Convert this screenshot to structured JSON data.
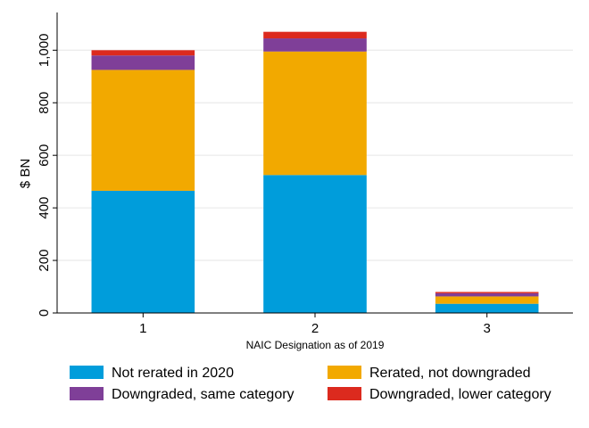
{
  "chart_data": {
    "type": "bar",
    "stacked": true,
    "categories": [
      "1",
      "2",
      "3"
    ],
    "series": [
      {
        "name": "Not rerated in 2020",
        "color": "#009ddb",
        "values": [
          465,
          525,
          35
        ]
      },
      {
        "name": "Rerated, not downgraded",
        "color": "#f2a900",
        "values": [
          460,
          470,
          28
        ]
      },
      {
        "name": "Downgraded, same category",
        "color": "#7f3f98",
        "values": [
          55,
          50,
          12
        ]
      },
      {
        "name": "Downgraded, lower category",
        "color": "#dc2a1e",
        "values": [
          20,
          25,
          5
        ]
      }
    ],
    "xlabel": "NAIC Designation as of 2019",
    "ylabel": "$ BN",
    "ylim": [
      0,
      1130
    ],
    "yticks": [
      0,
      200,
      400,
      600,
      800,
      1000
    ],
    "ytick_labels": [
      "0",
      "200",
      "400",
      "600",
      "800",
      "1,000"
    ],
    "grid": true,
    "legend_position": "bottom"
  }
}
